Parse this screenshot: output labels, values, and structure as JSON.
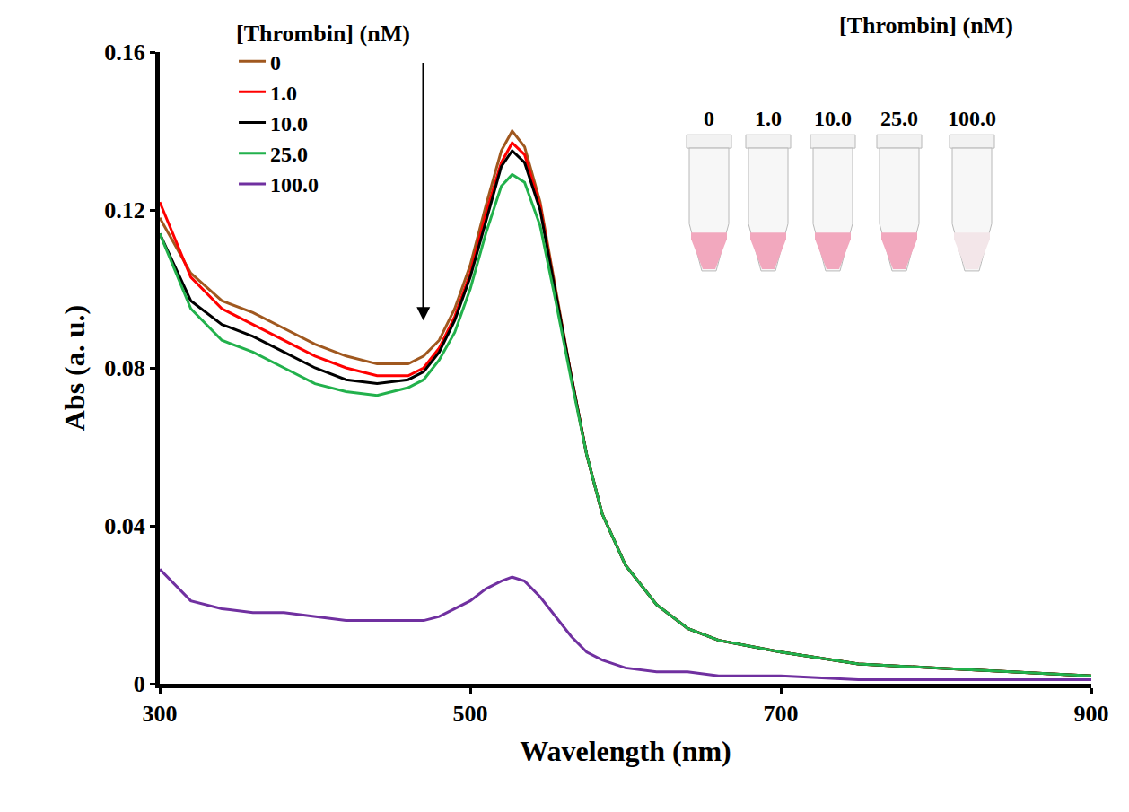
{
  "chart_data": {
    "type": "line",
    "x_label": "Wavelength (nm)",
    "y_label": "Abs (a. u.)",
    "legend_title": "[Thrombin] (nM)",
    "legend": "upper left",
    "grid": false,
    "xlim": [
      300,
      900
    ],
    "xticks": [
      300,
      500,
      700,
      900
    ],
    "ylim": [
      0,
      0.16
    ],
    "yticks": [
      0,
      0.04,
      0.08,
      0.12,
      0.16
    ],
    "x": [
      300,
      320,
      340,
      360,
      380,
      400,
      420,
      440,
      460,
      470,
      480,
      490,
      500,
      510,
      520,
      527,
      535,
      545,
      555,
      565,
      575,
      585,
      600,
      620,
      640,
      660,
      700,
      750,
      800,
      850,
      900
    ],
    "series": [
      {
        "name": "0",
        "color": "#a0581f",
        "values": [
          0.118,
          0.104,
          0.097,
          0.094,
          0.09,
          0.086,
          0.083,
          0.081,
          0.081,
          0.083,
          0.087,
          0.095,
          0.106,
          0.121,
          0.135,
          0.14,
          0.136,
          0.122,
          0.1,
          0.078,
          0.058,
          0.043,
          0.03,
          0.02,
          0.014,
          0.011,
          0.008,
          0.005,
          0.004,
          0.003,
          0.002
        ]
      },
      {
        "name": "1.0",
        "color": "#ff0000",
        "values": [
          0.122,
          0.103,
          0.095,
          0.091,
          0.087,
          0.083,
          0.08,
          0.078,
          0.078,
          0.08,
          0.085,
          0.093,
          0.104,
          0.119,
          0.132,
          0.137,
          0.134,
          0.121,
          0.099,
          0.078,
          0.058,
          0.043,
          0.03,
          0.02,
          0.014,
          0.011,
          0.008,
          0.005,
          0.004,
          0.003,
          0.002
        ]
      },
      {
        "name": "10.0",
        "color": "#000000",
        "values": [
          0.114,
          0.097,
          0.091,
          0.088,
          0.084,
          0.08,
          0.077,
          0.076,
          0.077,
          0.079,
          0.084,
          0.092,
          0.103,
          0.117,
          0.131,
          0.135,
          0.132,
          0.12,
          0.099,
          0.078,
          0.058,
          0.043,
          0.03,
          0.02,
          0.014,
          0.011,
          0.008,
          0.005,
          0.004,
          0.003,
          0.002
        ]
      },
      {
        "name": "25.0",
        "color": "#22b14c",
        "values": [
          0.114,
          0.095,
          0.087,
          0.084,
          0.08,
          0.076,
          0.074,
          0.073,
          0.075,
          0.077,
          0.082,
          0.089,
          0.1,
          0.114,
          0.126,
          0.129,
          0.127,
          0.116,
          0.097,
          0.077,
          0.058,
          0.043,
          0.03,
          0.02,
          0.014,
          0.011,
          0.008,
          0.005,
          0.004,
          0.003,
          0.002
        ]
      },
      {
        "name": "100.0",
        "color": "#7030a0",
        "values": [
          0.029,
          0.021,
          0.019,
          0.018,
          0.018,
          0.017,
          0.016,
          0.016,
          0.016,
          0.016,
          0.017,
          0.019,
          0.021,
          0.024,
          0.026,
          0.027,
          0.026,
          0.022,
          0.017,
          0.012,
          0.008,
          0.006,
          0.004,
          0.003,
          0.003,
          0.002,
          0.002,
          0.001,
          0.001,
          0.001,
          0.001
        ]
      }
    ],
    "inset": {
      "title": "[Thrombin] (nM)",
      "labels": [
        "0",
        "1.0",
        "10.0",
        "25.0",
        "100.0"
      ]
    }
  }
}
